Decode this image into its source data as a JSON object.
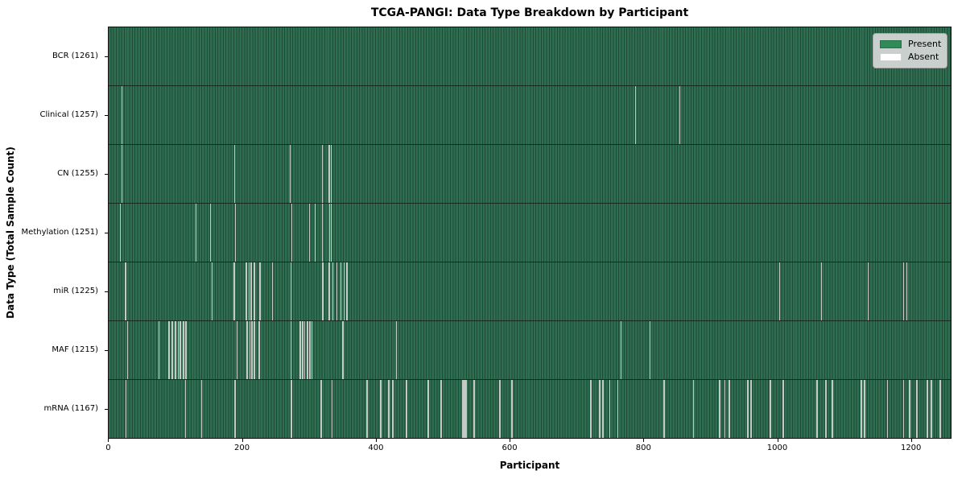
{
  "chart_data": {
    "type": "heatmap",
    "title": "TCGA-PANGI: Data Type Breakdown by Participant",
    "xlabel": "Participant",
    "ylabel": "Data Type (Total Sample Count)",
    "n_participants": 1261,
    "x_ticks": [
      0,
      200,
      400,
      600,
      800,
      1000,
      1200
    ],
    "x_range": [
      -0.5,
      1260.5
    ],
    "grid": false,
    "legend_position": "upper right",
    "legend": [
      {
        "label": "Present",
        "color": "#2e8b57"
      },
      {
        "label": "Absent",
        "color": "#ffffff"
      }
    ],
    "colors": {
      "present_stripe_light": "#2f6e50",
      "present_stripe_dark": "#1e4b36",
      "absent_stripe": "#c6cac6",
      "row_separator": "#17291e",
      "legend_background": "#d8d8d8"
    },
    "rows": [
      {
        "label": "BCR (1261)",
        "name": "BCR",
        "total": 1261,
        "absent": []
      },
      {
        "label": "Clinical (1257)",
        "name": "Clinical",
        "total": 1257,
        "absent": [
          19,
          20,
          787,
          853
        ]
      },
      {
        "label": "CN (1255)",
        "name": "CN",
        "total": 1255,
        "absent": [
          19,
          188,
          271,
          319,
          329,
          332
        ]
      },
      {
        "label": "Methylation (1251)",
        "name": "Methylation",
        "total": 1251,
        "absent": [
          17,
          130,
          152,
          189,
          273,
          300,
          308,
          319,
          330,
          332
        ]
      },
      {
        "label": "miR (1225)",
        "name": "miR",
        "total": 1225,
        "absent": [
          24,
          25,
          154,
          187,
          205,
          206,
          209,
          210,
          212,
          213,
          217,
          218,
          225,
          226,
          244,
          272,
          319,
          320,
          329,
          330,
          334,
          335,
          340,
          341,
          346,
          347,
          351,
          352,
          355,
          356,
          1002,
          1065,
          1135,
          1188,
          1192,
          1193
        ]
      },
      {
        "label": "MAF (1215)",
        "name": "MAF",
        "total": 1215,
        "absent": [
          28,
          75,
          89,
          90,
          94,
          95,
          99,
          100,
          103,
          104,
          106,
          107,
          111,
          112,
          114,
          115,
          116,
          191,
          206,
          207,
          210,
          211,
          213,
          214,
          217,
          218,
          224,
          225,
          272,
          285,
          286,
          289,
          290,
          292,
          293,
          296,
          297,
          300,
          301,
          303,
          304,
          349,
          350,
          430,
          765,
          808
        ]
      },
      {
        "label": "mRNA (1167)",
        "name": "mRNA",
        "total": 1167,
        "absent": [
          25,
          26,
          114,
          115,
          138,
          139,
          188,
          189,
          272,
          273,
          317,
          318,
          333,
          334,
          385,
          386,
          406,
          407,
          418,
          419,
          424,
          425,
          444,
          445,
          477,
          478,
          496,
          497,
          528,
          529,
          530,
          531,
          532,
          533,
          534,
          545,
          546,
          584,
          585,
          602,
          603,
          720,
          721,
          733,
          734,
          738,
          739,
          748,
          749,
          760,
          761,
          829,
          830,
          873,
          874,
          912,
          913,
          920,
          921,
          927,
          928,
          954,
          955,
          959,
          960,
          988,
          989,
          1007,
          1008,
          1009,
          1058,
          1059,
          1071,
          1072,
          1081,
          1082,
          1124,
          1125,
          1129,
          1130,
          1163,
          1164,
          1187,
          1188,
          1196,
          1197,
          1207,
          1208,
          1223,
          1224,
          1229,
          1230,
          1242,
          1243
        ]
      }
    ]
  }
}
